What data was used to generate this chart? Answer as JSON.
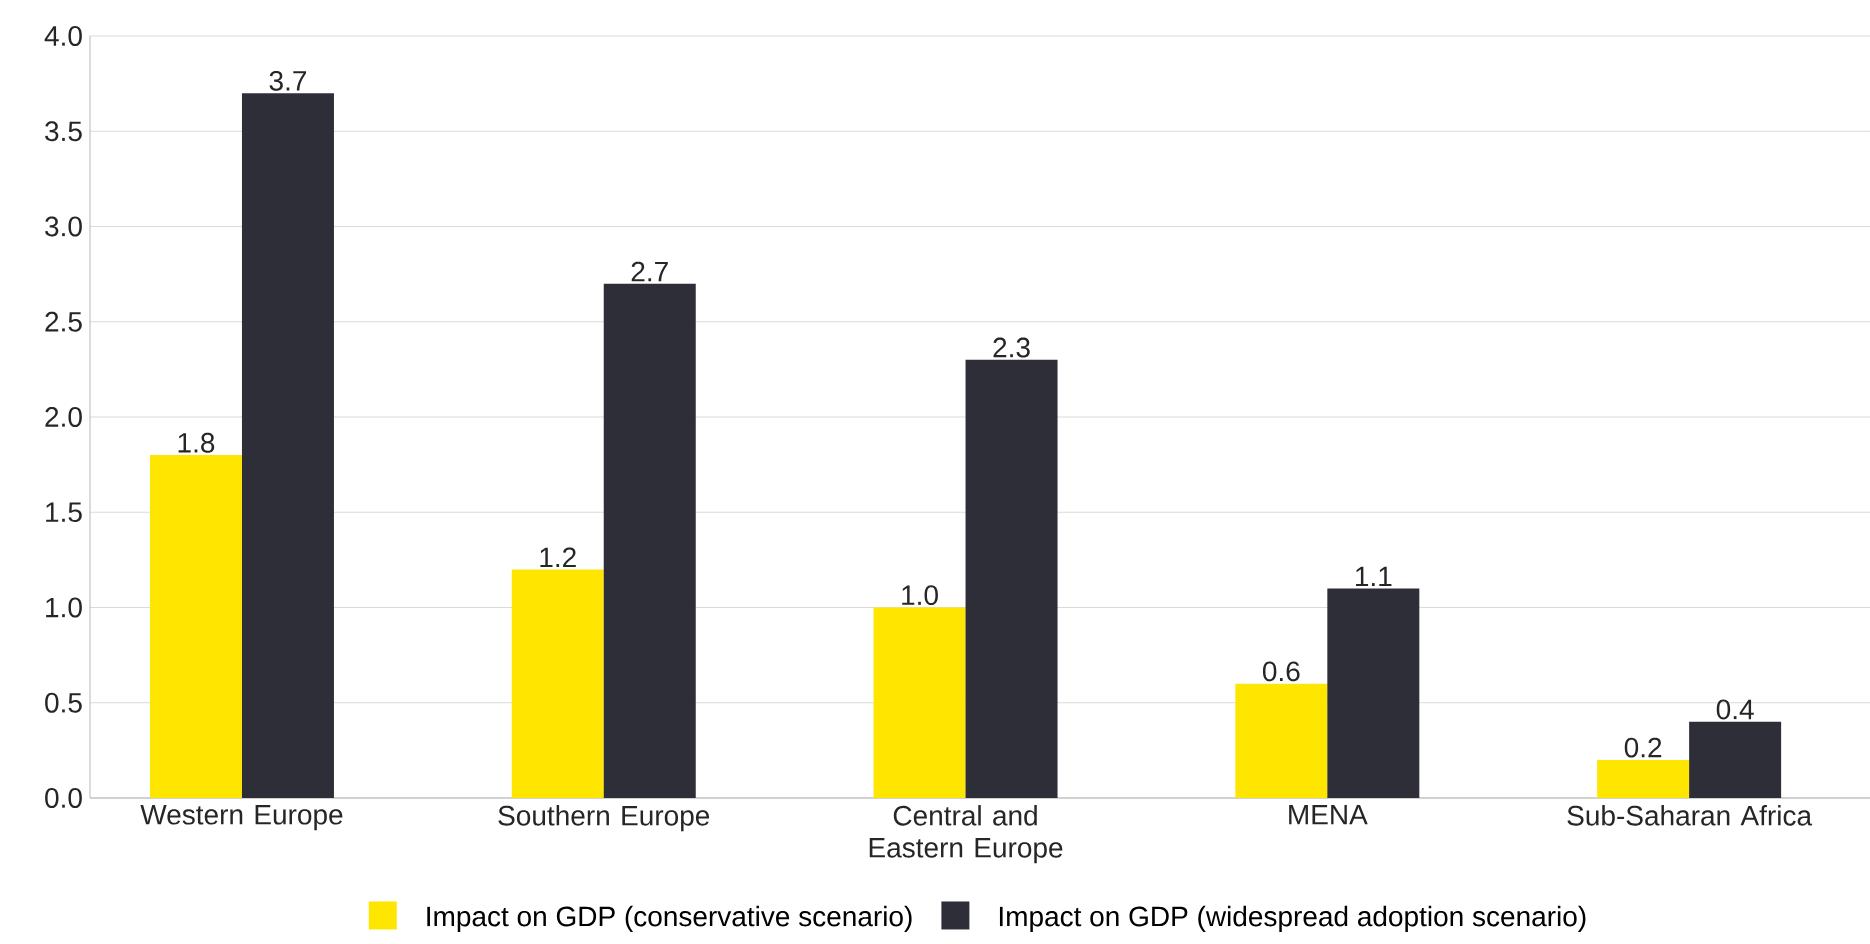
{
  "chart_data": {
    "type": "bar",
    "categories": [
      "Western Europe",
      "Southern Europe",
      "Central and Eastern Europe",
      "MENA",
      "Sub-Saharan Africa"
    ],
    "series": [
      {
        "name": "Impact on GDP (conservative scenario)",
        "color": "#ffe600",
        "values": [
          1.8,
          1.2,
          1.0,
          0.6,
          0.2
        ],
        "value_labels": [
          "1.8",
          "1.2",
          "1.0",
          "0.6",
          "0.2"
        ]
      },
      {
        "name": "Impact on GDP (widespread adoption scenario)",
        "color": "#2e2e38",
        "values": [
          3.7,
          2.7,
          2.3,
          1.1,
          0.4
        ],
        "value_labels": [
          "3.7",
          "2.7",
          "2.3",
          "1.1",
          "0.4"
        ]
      }
    ],
    "ylim": [
      0,
      4
    ],
    "yticks": [
      {
        "value": 0,
        "label": "0.0"
      },
      {
        "value": 0.5,
        "label": "0.5"
      },
      {
        "value": 1,
        "label": "1.0"
      },
      {
        "value": 1.5,
        "label": "1.5"
      },
      {
        "value": 2,
        "label": "2.0"
      },
      {
        "value": 2.5,
        "label": "2.5"
      },
      {
        "value": 3,
        "label": "3.0"
      },
      {
        "value": 3.5,
        "label": "3.5"
      },
      {
        "value": 4,
        "label": "4.0"
      }
    ],
    "grid": "y",
    "legend": "bottom"
  }
}
